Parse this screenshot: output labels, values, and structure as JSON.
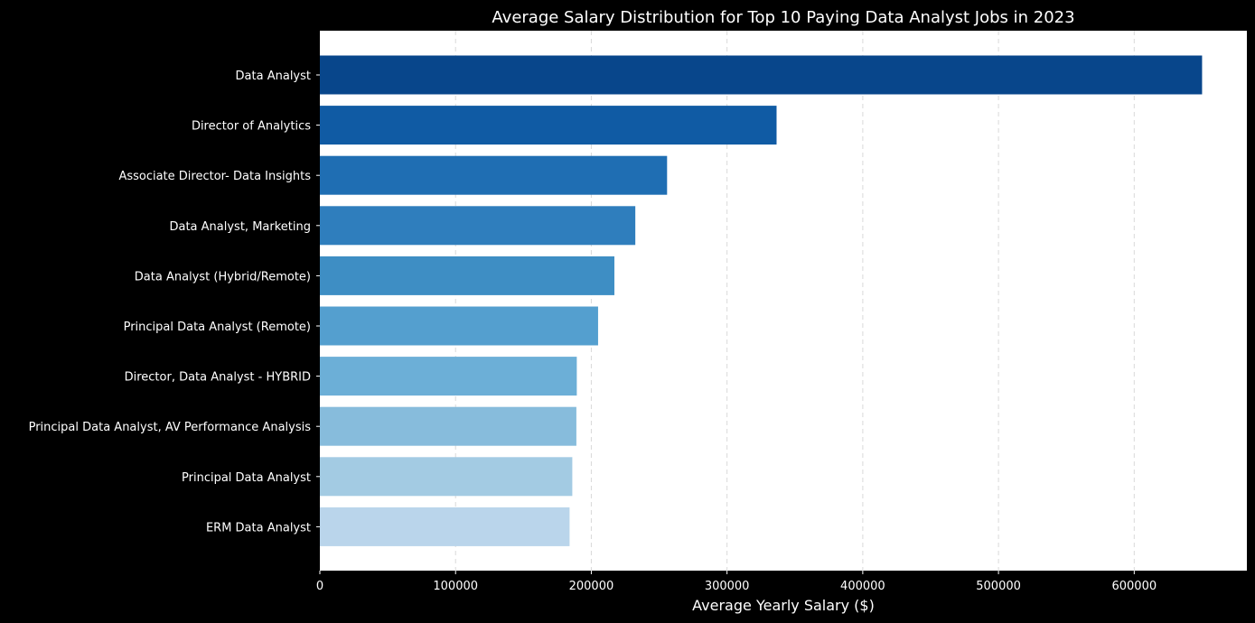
{
  "chart_data": {
    "type": "bar",
    "orientation": "horizontal",
    "title": "Average Salary Distribution for Top 10 Paying Data Analyst Jobs in 2023",
    "xlabel": "Average Yearly Salary ($)",
    "ylabel": "",
    "xlim": [
      0,
      683000
    ],
    "xticks": [
      0,
      100000,
      200000,
      300000,
      400000,
      500000,
      600000
    ],
    "grid": "vertical-dashed",
    "categories": [
      "Data Analyst",
      "Director of Analytics",
      "Associate Director- Data Insights",
      "Data Analyst, Marketing",
      "Data Analyst (Hybrid/Remote)",
      "Principal Data Analyst (Remote)",
      "Director, Data Analyst - HYBRID",
      "Principal Data Analyst, AV Performance Analysis",
      "Principal Data Analyst",
      "ERM Data Analyst"
    ],
    "values": [
      650000,
      336500,
      255830,
      232424,
      217000,
      205000,
      189309,
      189000,
      186000,
      184000
    ],
    "colors": [
      "#08468b",
      "#105ba4",
      "#1f6eb3",
      "#2f7ebd",
      "#3e8ec4",
      "#549fcf",
      "#6cafd7",
      "#87bcdc",
      "#a3cbe3",
      "#bad5eb"
    ],
    "background": "#000000",
    "plot_background": "#ffffff"
  }
}
